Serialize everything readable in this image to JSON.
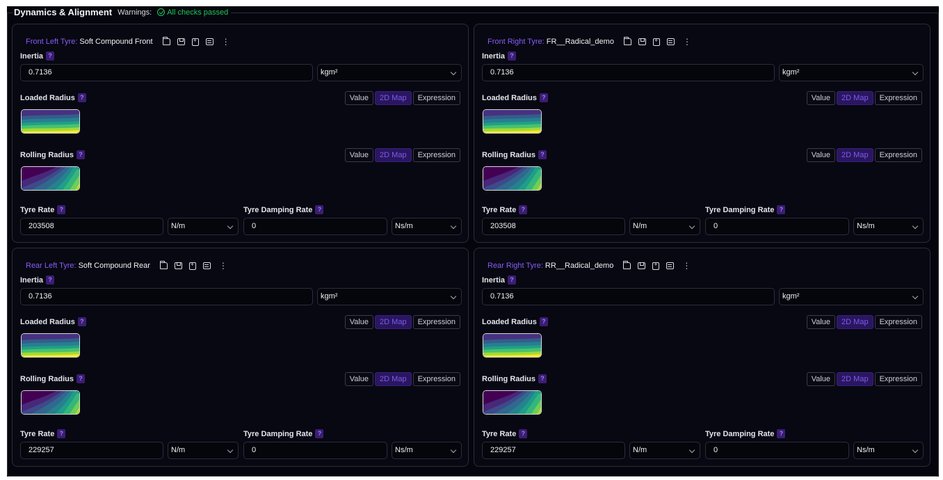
{
  "header": {
    "title": "Dynamics & Alignment",
    "warnings_label": "Warnings:",
    "status_text": "All checks passed",
    "status_color": "#22c55e"
  },
  "accent": "#8a5cf6",
  "units": {
    "inertia": "kgm²",
    "rate": "N/m",
    "damping": "Ns/m"
  },
  "mode_options": [
    "Value",
    "2D Map",
    "Expression"
  ],
  "active_mode": "2D Map",
  "labels": {
    "inertia": "Inertia",
    "loaded_radius": "Loaded Radius",
    "rolling_radius": "Rolling Radius",
    "tyre_rate": "Tyre Rate",
    "tyre_damping_rate": "Tyre Damping Rate",
    "help": "?"
  },
  "tyres": [
    {
      "position": "Front Left Tyre:",
      "name": "Soft Compound Front",
      "inertia": "0.7136",
      "tyre_rate": "203508",
      "damping_rate": "0"
    },
    {
      "position": "Front Right Tyre:",
      "name": "FR__Radical_demo",
      "inertia": "0.7136",
      "tyre_rate": "203508",
      "damping_rate": "0"
    },
    {
      "position": "Rear Left Tyre:",
      "name": "Soft Compound Rear",
      "inertia": "0.7136",
      "tyre_rate": "229257",
      "damping_rate": "0"
    },
    {
      "position": "Rear Right Tyre:",
      "name": "RR__Radical_demo",
      "inertia": "0.7136",
      "tyre_rate": "229257",
      "damping_rate": "0"
    }
  ]
}
